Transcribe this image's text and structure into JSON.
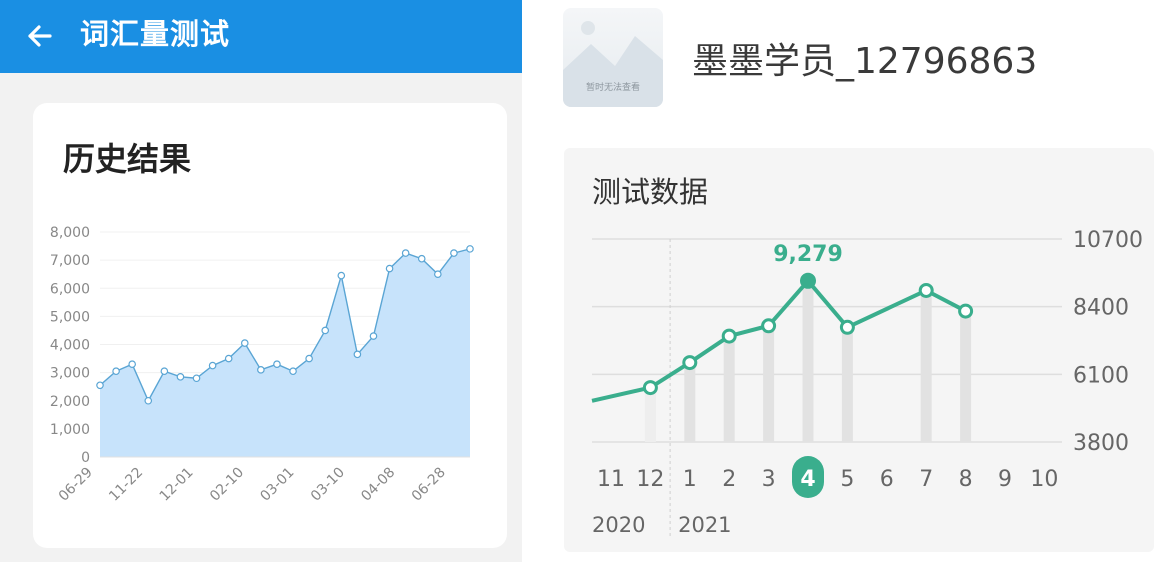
{
  "header": {
    "title": "词汇量测试",
    "back_icon": "arrow-left-icon"
  },
  "history": {
    "title": "历史结果"
  },
  "profile": {
    "username": "墨墨学员_12796863",
    "avatar_text": "暂时无法查看"
  },
  "test_panel": {
    "title": "测试数据"
  },
  "colors": {
    "header": "#1a8fe3",
    "area_fill": "#c7e3fb",
    "area_line": "#5aa5d4",
    "accent": "#3aae8d",
    "bar": "#e2e2e2"
  },
  "chart_data": [
    {
      "type": "area",
      "ylim": [
        0,
        8000
      ],
      "yticks": [
        "0",
        "1,000",
        "2,000",
        "3,000",
        "4,000",
        "5,000",
        "6,000",
        "7,000",
        "8,000"
      ],
      "xtick_labels": [
        "06-29",
        "11-22",
        "12-01",
        "02-10",
        "03-01",
        "03-10",
        "04-08",
        "06-28"
      ],
      "values": [
        2550,
        3050,
        3300,
        2000,
        3050,
        2850,
        2800,
        3250,
        3500,
        4050,
        3100,
        3300,
        3050,
        3500,
        4500,
        6450,
        3650,
        4300,
        6700,
        7250,
        7050,
        6500,
        7250,
        7400
      ]
    },
    {
      "type": "line",
      "ylim": [
        3800,
        10700
      ],
      "yticks": [
        "3800",
        "6100",
        "8400",
        "10700"
      ],
      "categories": [
        "11",
        "12",
        "1",
        "2",
        "3",
        "4",
        "5",
        "6",
        "7",
        "8",
        "9",
        "10"
      ],
      "years": [
        "2020",
        "2021"
      ],
      "selected": "4",
      "highlight_label": "9,279",
      "points": [
        {
          "cat": "12",
          "value": 5650
        },
        {
          "cat": "1",
          "value": 6500
        },
        {
          "cat": "2",
          "value": 7400
        },
        {
          "cat": "3",
          "value": 7750
        },
        {
          "cat": "4",
          "value": 9279
        },
        {
          "cat": "5",
          "value": 7700
        },
        {
          "cat": "7",
          "value": 8950
        },
        {
          "cat": "8",
          "value": 8250
        }
      ],
      "lead_in_value": 5200
    }
  ]
}
